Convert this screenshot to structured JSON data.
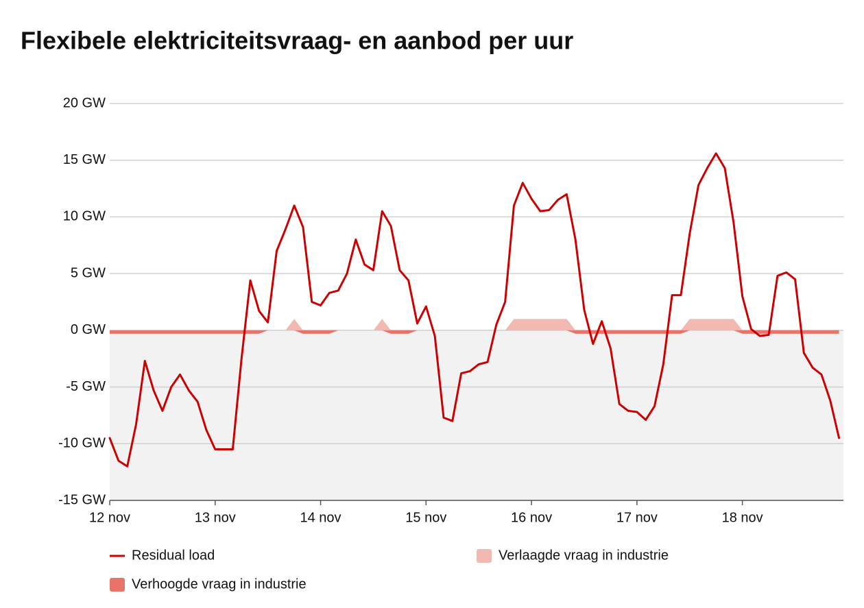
{
  "chart_data": {
    "type": "line",
    "title": "Flexibele elektriciteitsvraag- en aanbod per uur",
    "x": [
      0,
      2,
      4,
      6,
      8,
      10,
      12,
      14,
      16,
      18,
      20,
      22,
      24,
      26,
      28,
      30,
      32,
      34,
      36,
      38,
      40,
      42,
      44,
      46,
      48,
      50,
      52,
      54,
      56,
      58,
      60,
      62,
      64,
      66,
      68,
      70,
      72,
      74,
      76,
      78,
      80,
      82,
      84,
      86,
      88,
      90,
      92,
      94,
      96,
      98,
      100,
      102,
      104,
      106,
      108,
      110,
      112,
      114,
      116,
      118,
      120,
      122,
      124,
      126,
      128,
      130,
      132,
      134,
      136,
      138,
      140,
      142,
      144,
      146,
      148,
      150,
      152,
      154,
      156,
      158,
      160,
      162,
      164,
      166
    ],
    "xlim": [
      0,
      167
    ],
    "xticks": [
      {
        "value": 0,
        "label": "12 nov"
      },
      {
        "value": 24,
        "label": "13 nov"
      },
      {
        "value": 48,
        "label": "14 nov"
      },
      {
        "value": 72,
        "label": "15 nov"
      },
      {
        "value": 96,
        "label": "16 nov"
      },
      {
        "value": 120,
        "label": "17 nov"
      },
      {
        "value": 144,
        "label": "18 nov"
      }
    ],
    "ylim": [
      -15,
      20
    ],
    "yticks": [
      {
        "value": -15,
        "label": "-15 GW"
      },
      {
        "value": -10,
        "label": "-10 GW"
      },
      {
        "value": -5,
        "label": "-5 GW"
      },
      {
        "value": 0,
        "label": "0 GW"
      },
      {
        "value": 5,
        "label": "5 GW"
      },
      {
        "value": 10,
        "label": "10 GW"
      },
      {
        "value": 15,
        "label": "15 GW"
      },
      {
        "value": 20,
        "label": "20 GW"
      }
    ],
    "grid": true,
    "series": [
      {
        "name": "Residual load",
        "type": "line",
        "color": "#cc0000",
        "values": [
          -9.5,
          -11.5,
          -12,
          -8.3,
          -2.7,
          -5.3,
          -7.1,
          -5,
          -3.9,
          -5.3,
          -6.3,
          -8.8,
          -10.5,
          -10.5,
          -10.5,
          -2.5,
          4.4,
          1.7,
          0.7,
          7,
          8.9,
          11,
          9.1,
          2.5,
          2.2,
          3.3,
          3.5,
          5,
          8,
          5.8,
          5.3,
          10.5,
          9.2,
          5.3,
          4.4,
          0.6,
          2.1,
          -0.5,
          -7.7,
          -8,
          -3.8,
          -3.6,
          -3,
          -2.8,
          0.5,
          2.5,
          11,
          13,
          11.6,
          10.5,
          10.6,
          11.5,
          12,
          8,
          1.8,
          -1.2,
          0.8,
          -1.6,
          -6.5,
          -7.1,
          -7.2,
          -7.9,
          -6.7,
          -3,
          3.1,
          3.1,
          8.5,
          12.8,
          14.3,
          15.6,
          14.3,
          9.5,
          3,
          0.1,
          -0.5,
          -0.4,
          4.8,
          5.1,
          4.5,
          -2,
          -3.3,
          -3.9,
          -6.2,
          -9.5
        ]
      },
      {
        "name": "Verlaagde vraag in industrie",
        "type": "area",
        "color": "#f4b8b3",
        "values": [
          0,
          0,
          0,
          0,
          0,
          0,
          0,
          0,
          0,
          0,
          0,
          0,
          0,
          0,
          0,
          0,
          0,
          0,
          0,
          0,
          0,
          1,
          0,
          0,
          0,
          0,
          0,
          0,
          0,
          0,
          0,
          1,
          0,
          0,
          0,
          0,
          0,
          0,
          0,
          0,
          0,
          0,
          0,
          0,
          0,
          0,
          1,
          1,
          1,
          1,
          1,
          1,
          1,
          0,
          0,
          0,
          0,
          0,
          0,
          0,
          0,
          0,
          0,
          0,
          0,
          0,
          1,
          1,
          1,
          1,
          1,
          1,
          0,
          0,
          0,
          0,
          0,
          0,
          0,
          0,
          0,
          0,
          0,
          0
        ]
      },
      {
        "name": "Verhoogde vraag in industrie",
        "type": "area",
        "color": "#e8736a",
        "values": [
          -0.3,
          -0.3,
          -0.3,
          -0.3,
          -0.3,
          -0.3,
          -0.3,
          -0.3,
          -0.3,
          -0.3,
          -0.3,
          -0.3,
          -0.3,
          -0.3,
          -0.3,
          -0.3,
          -0.3,
          -0.3,
          0,
          0,
          0,
          0,
          -0.3,
          -0.3,
          -0.3,
          -0.3,
          0,
          0,
          0,
          0,
          0,
          0,
          -0.3,
          -0.3,
          -0.3,
          0,
          0,
          0,
          0,
          0,
          0,
          0,
          0,
          0,
          0,
          0,
          0,
          0,
          0,
          0,
          0,
          0,
          0,
          -0.3,
          -0.3,
          -0.3,
          -0.3,
          -0.3,
          -0.3,
          -0.3,
          -0.3,
          -0.3,
          -0.3,
          -0.3,
          -0.3,
          -0.3,
          0,
          0,
          0,
          0,
          0,
          0,
          -0.3,
          -0.3,
          -0.3,
          -0.3,
          -0.3,
          -0.3,
          -0.3,
          -0.3,
          -0.3,
          -0.3,
          -0.3,
          -0.3
        ]
      }
    ]
  }
}
